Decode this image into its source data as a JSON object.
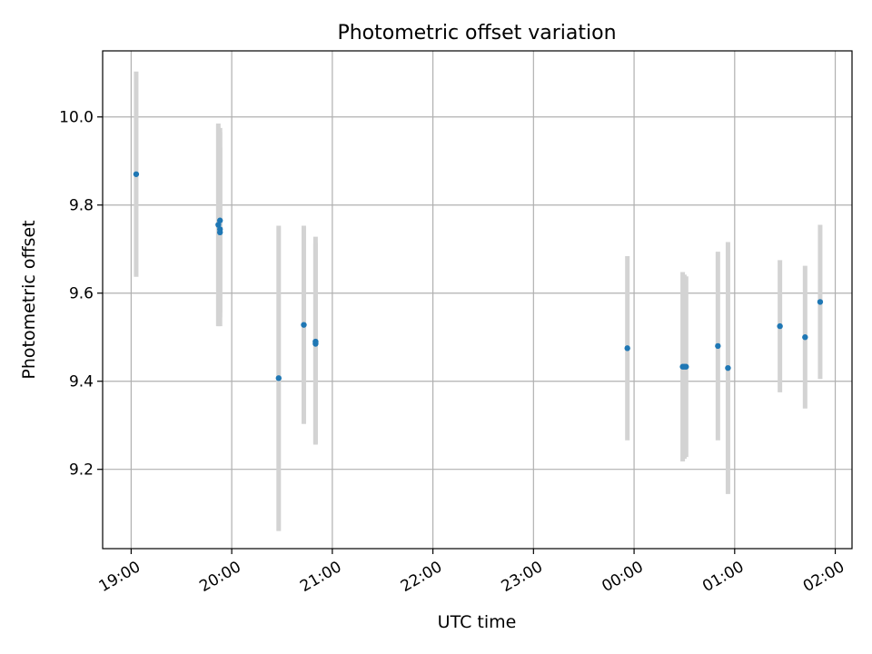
{
  "chart_data": {
    "type": "scatter",
    "title": "Photometric offset variation",
    "xlabel": "UTC time",
    "ylabel": "Photometric offset",
    "x_axis_type": "time",
    "xlim": [
      "18:43",
      "02:10"
    ],
    "ylim": [
      9.02,
      10.15
    ],
    "xticks": [
      "19:00",
      "20:00",
      "21:00",
      "22:00",
      "23:00",
      "00:00",
      "01:00",
      "02:00"
    ],
    "yticks": [
      9.2,
      9.4,
      9.6,
      9.8,
      10.0
    ],
    "yticklabels": [
      "9.2",
      "9.4",
      "9.6",
      "9.8",
      "10.0"
    ],
    "grid": true,
    "marker_color": "#1f77b4",
    "errorbar_color": "#d3d3d3",
    "series": [
      {
        "points": [
          {
            "x": "19:03",
            "y": 9.87,
            "ylow": 9.637,
            "yhigh": 10.103
          },
          {
            "x": "19:52",
            "y": 9.755,
            "ylow": 9.525,
            "yhigh": 9.985
          },
          {
            "x": "19:53",
            "y": 9.765,
            "ylow": 9.555,
            "yhigh": 9.975
          },
          {
            "x": "19:53",
            "y": 9.745,
            "ylow": 9.525,
            "yhigh": 9.965
          },
          {
            "x": "19:53",
            "y": 9.738,
            "ylow": 9.545,
            "yhigh": 9.931
          },
          {
            "x": "20:28",
            "y": 9.407,
            "ylow": 9.06,
            "yhigh": 9.753
          },
          {
            "x": "20:43",
            "y": 9.528,
            "ylow": 9.303,
            "yhigh": 9.753
          },
          {
            "x": "20:50",
            "y": 9.49,
            "ylow": 9.258,
            "yhigh": 9.728
          },
          {
            "x": "20:50",
            "y": 9.485,
            "ylow": 9.256,
            "yhigh": 9.714
          },
          {
            "x": "23:56",
            "y": 9.475,
            "ylow": 9.266,
            "yhigh": 9.684
          },
          {
            "x": "00:29",
            "y": 9.433,
            "ylow": 9.218,
            "yhigh": 9.648
          },
          {
            "x": "00:30",
            "y": 9.433,
            "ylow": 9.224,
            "yhigh": 9.642
          },
          {
            "x": "00:31",
            "y": 9.433,
            "ylow": 9.228,
            "yhigh": 9.638
          },
          {
            "x": "00:50",
            "y": 9.48,
            "ylow": 9.266,
            "yhigh": 9.694
          },
          {
            "x": "00:56",
            "y": 9.43,
            "ylow": 9.144,
            "yhigh": 9.716
          },
          {
            "x": "01:27",
            "y": 9.525,
            "ylow": 9.375,
            "yhigh": 9.675
          },
          {
            "x": "01:42",
            "y": 9.5,
            "ylow": 9.338,
            "yhigh": 9.662
          },
          {
            "x": "01:51",
            "y": 9.58,
            "ylow": 9.405,
            "yhigh": 9.755
          }
        ]
      }
    ]
  }
}
